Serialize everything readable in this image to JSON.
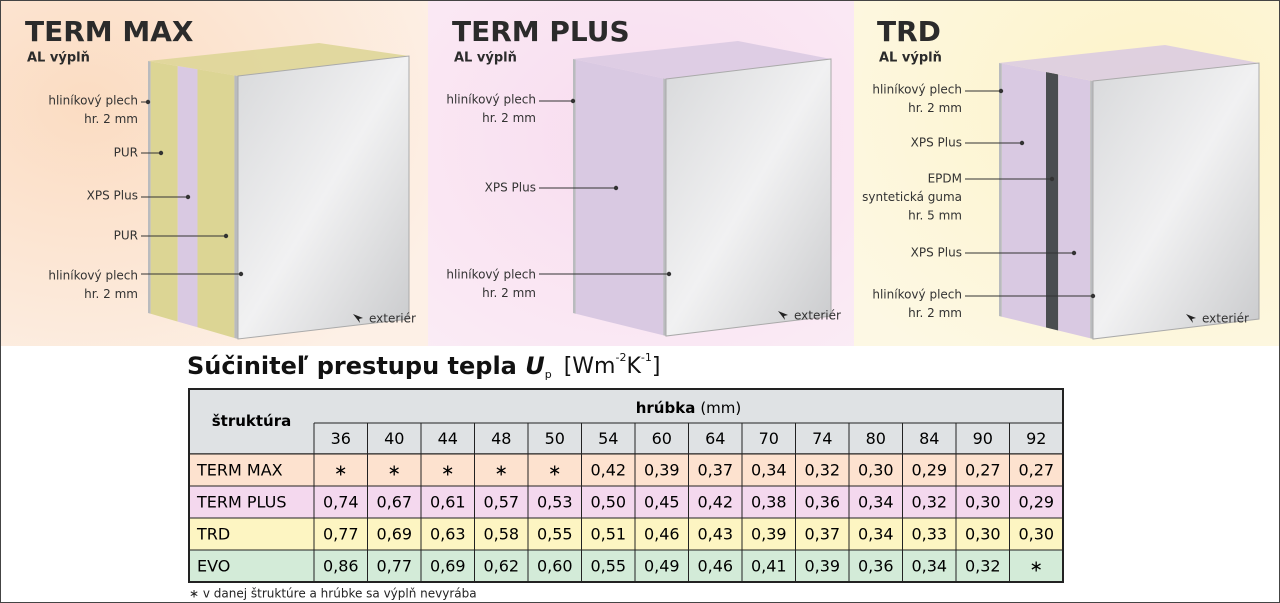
{
  "panels": [
    {
      "title": "TERM MAX",
      "subtitle": "AL výplň",
      "labels": [
        [
          "hliníkový plech",
          "hr. 2 mm"
        ],
        [
          "PUR"
        ],
        [
          "XPS Plus"
        ],
        [
          "PUR"
        ],
        [
          "hliníkový plech",
          "hr. 2 mm"
        ]
      ],
      "exterior": "exteriér"
    },
    {
      "title": "TERM PLUS",
      "subtitle": "AL výplň",
      "labels": [
        [
          "hliníkový plech",
          "hr. 2 mm"
        ],
        [
          "XPS Plus"
        ],
        [
          "hliníkový plech",
          "hr. 2 mm"
        ]
      ],
      "exterior": "exteriér"
    },
    {
      "title": "TRD",
      "subtitle": "AL výplň",
      "labels": [
        [
          "hliníkový plech",
          "hr. 2 mm"
        ],
        [
          "XPS Plus"
        ],
        [
          "EPDM",
          "syntetická guma",
          "hr. 5 mm"
        ],
        [
          "XPS Plus"
        ],
        [
          "hliníkový plech",
          "hr. 2 mm"
        ]
      ],
      "exterior": "exteriér"
    }
  ],
  "table_title": {
    "text": "Súčiniteľ prestupu tepla ",
    "symbol": "U",
    "subscript": "p",
    "unit_open": "[Wm",
    "exp1": "-2",
    "unit_mid": "K",
    "exp2": "-1",
    "unit_close": "]"
  },
  "table": {
    "corner": "štruktúra",
    "group_header": "hrúbka",
    "group_unit": "(mm)",
    "columns": [
      "36",
      "40",
      "44",
      "48",
      "50",
      "54",
      "60",
      "64",
      "70",
      "74",
      "80",
      "84",
      "90",
      "92"
    ],
    "rows": [
      {
        "name": "TERM MAX",
        "cells": [
          "∗",
          "∗",
          "∗",
          "∗",
          "∗",
          "0,42",
          "0,39",
          "0,37",
          "0,34",
          "0,32",
          "0,30",
          "0,29",
          "0,27",
          "0,27"
        ]
      },
      {
        "name": "TERM PLUS",
        "cells": [
          "0,74",
          "0,67",
          "0,61",
          "0,57",
          "0,53",
          "0,50",
          "0,45",
          "0,42",
          "0,38",
          "0,36",
          "0,34",
          "0,32",
          "0,30",
          "0,29"
        ]
      },
      {
        "name": "TRD",
        "cells": [
          "0,77",
          "0,69",
          "0,63",
          "0,58",
          "0,55",
          "0,51",
          "0,46",
          "0,43",
          "0,39",
          "0,37",
          "0,34",
          "0,33",
          "0,30",
          "0,30"
        ]
      },
      {
        "name": "EVO",
        "cells": [
          "0,86",
          "0,77",
          "0,69",
          "0,62",
          "0,60",
          "0,55",
          "0,49",
          "0,46",
          "0,41",
          "0,39",
          "0,36",
          "0,34",
          "0,32",
          "∗"
        ]
      }
    ]
  },
  "footnote": "∗ v danej štruktúre a hrúbke sa výplň nevyrába"
}
